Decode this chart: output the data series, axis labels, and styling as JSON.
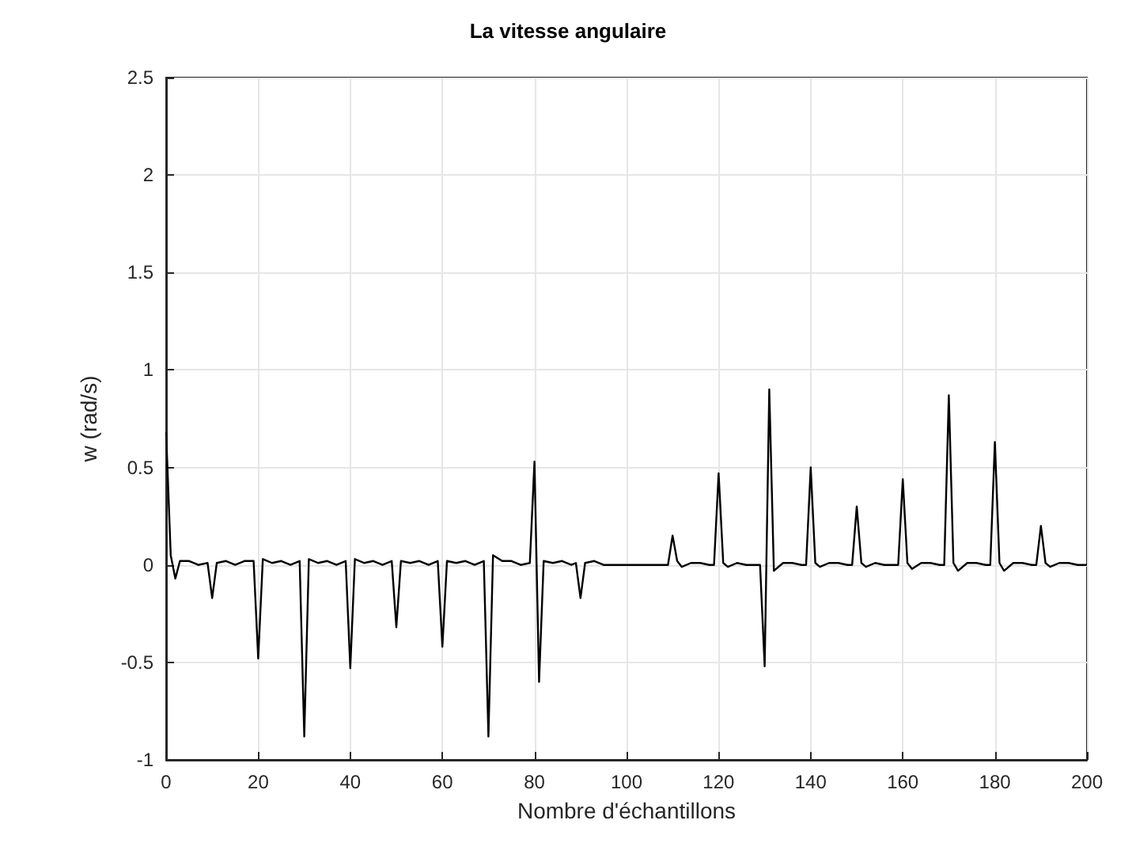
{
  "chart_data": {
    "type": "line",
    "title": "La vitesse angulaire",
    "xlabel": "Nombre d'échantillons",
    "ylabel": "w (rad/s)",
    "series": [
      {
        "color": "#000000",
        "x": [
          0,
          1,
          2,
          3,
          5,
          7,
          9,
          10,
          11,
          13,
          15,
          17,
          19,
          20,
          21,
          23,
          25,
          27,
          29,
          30,
          31,
          33,
          35,
          37,
          39,
          40,
          41,
          43,
          45,
          47,
          49,
          50,
          51,
          53,
          55,
          57,
          59,
          60,
          61,
          63,
          65,
          67,
          69,
          70,
          71,
          73,
          75,
          77,
          79,
          80,
          81,
          82,
          84,
          86,
          88,
          89,
          90,
          91,
          93,
          95,
          100,
          109,
          110,
          111,
          112,
          114,
          116,
          118,
          119,
          120,
          121,
          122,
          124,
          126,
          129,
          130,
          131,
          132,
          134,
          136,
          138,
          139,
          140,
          141,
          142,
          144,
          146,
          148,
          149,
          150,
          151,
          152,
          154,
          156,
          159,
          160,
          161,
          162,
          164,
          166,
          168,
          169,
          170,
          171,
          172,
          174,
          176,
          178,
          179,
          180,
          181,
          182,
          184,
          186,
          188,
          189,
          190,
          191,
          192,
          194,
          196,
          198,
          200
        ],
        "values": [
          0.68,
          0.05,
          -0.07,
          0.02,
          0.02,
          0,
          0.01,
          -0.17,
          0.01,
          0.02,
          0,
          0.02,
          0.02,
          -0.48,
          0.03,
          0.01,
          0.02,
          0,
          0.02,
          -0.88,
          0.03,
          0.01,
          0.02,
          0,
          0.02,
          -0.53,
          0.03,
          0.01,
          0.02,
          0,
          0.02,
          -0.32,
          0.02,
          0.01,
          0.02,
          0,
          0.02,
          -0.42,
          0.02,
          0.01,
          0.02,
          0,
          0.02,
          -0.88,
          0.05,
          0.02,
          0.02,
          0,
          0.01,
          0.53,
          -0.6,
          0.02,
          0.01,
          0.02,
          0,
          0.01,
          -0.17,
          0.01,
          0.02,
          0,
          0,
          0,
          0.15,
          0.02,
          -0.01,
          0.01,
          0.01,
          0,
          0,
          0.47,
          0.01,
          -0.01,
          0.01,
          0,
          0,
          -0.52,
          0.9,
          -0.03,
          0.01,
          0.01,
          0,
          0,
          0.5,
          0.01,
          -0.01,
          0.01,
          0.01,
          0,
          0,
          0.3,
          0.01,
          -0.01,
          0.01,
          0,
          0,
          0.44,
          0.01,
          -0.02,
          0.01,
          0.01,
          0,
          0,
          0.87,
          0.01,
          -0.03,
          0.01,
          0.01,
          0,
          0,
          0.63,
          0.01,
          -0.03,
          0.01,
          0.01,
          0,
          0,
          0.2,
          0.01,
          -0.01,
          0.01,
          0.01,
          0,
          0
        ]
      }
    ],
    "xlim": [
      0,
      200
    ],
    "xticks": [
      0,
      20,
      40,
      60,
      80,
      100,
      120,
      140,
      160,
      180,
      200
    ],
    "ylim": [
      -1,
      2.5
    ],
    "yticks": [
      -1,
      -0.5,
      0,
      0.5,
      1,
      1.5,
      2,
      2.5
    ],
    "grid": true,
    "marker": "none",
    "line_style": "solid"
  }
}
